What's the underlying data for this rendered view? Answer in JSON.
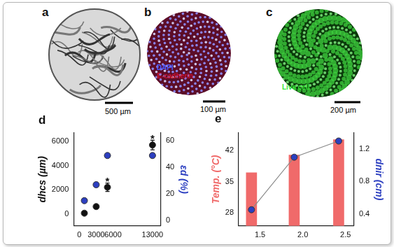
{
  "panels": [
    {
      "label": "a",
      "scale_bar": "500 µm"
    },
    {
      "label": "b",
      "scale_bar": "100 µm",
      "stains": [
        {
          "text": "DAPI",
          "color": "#4a5cff"
        },
        {
          "text": "E-cadherin",
          "color": "#c8102e"
        }
      ]
    },
    {
      "label": "c",
      "scale_bar": "200 µm",
      "stains": [
        {
          "text": "Live cell",
          "color": "#39e639"
        }
      ]
    }
  ],
  "chart_data": [
    {
      "type": "scatter",
      "title": "d",
      "x": [
        900,
        3000,
        5000,
        13000
      ],
      "xlim": [
        -1000,
        14500
      ],
      "xticks": [
        0,
        3000,
        6000,
        13000
      ],
      "ylabel": "dhcs (µm)",
      "ylim": [
        -1000,
        6700
      ],
      "yticks": [
        0,
        2000,
        4000,
        6000
      ],
      "y2label": "εd (%)",
      "y2lim": [
        -4,
        66
      ],
      "y2ticks": [
        0,
        20,
        40,
        60
      ],
      "grid": false,
      "series": [
        {
          "color": "#111111",
          "marker": "circle",
          "values": [
            50,
            600,
            2200,
            5700
          ],
          "errors": [
            null,
            null,
            350,
            400
          ],
          "annotations": [
            null,
            null,
            "*",
            "*"
          ]
        },
        {
          "color": "#2c3fc0",
          "marker": "circle",
          "axis": "y2",
          "values": [
            15,
            27,
            49,
            49
          ]
        }
      ]
    },
    {
      "type": "bar",
      "title": "e",
      "x": [
        1.4,
        1.9,
        2.42
      ],
      "xlim": [
        1.25,
        2.6
      ],
      "xticks": [
        1.5,
        {
          "value": 2,
          "label": "2.0"
        },
        2.5
      ],
      "ylabel": "Temp. (°C)",
      "ylim": [
        25,
        46
      ],
      "yticks": [
        28,
        35,
        42
      ],
      "y2label": "dnir (cm)",
      "y2lim": [
        0.25,
        1.4
      ],
      "y2ticks": [
        0.4,
        0.8,
        1.2
      ],
      "grid": false,
      "series": [
        {
          "type": "bar",
          "color": "#f06a6a",
          "values": [
            37,
            41,
            44.5
          ]
        },
        {
          "type": "line",
          "color": "#2c3fc0",
          "marker": "circle",
          "axis": "y2",
          "values": [
            0.45,
            1.1,
            1.3
          ]
        }
      ]
    }
  ]
}
